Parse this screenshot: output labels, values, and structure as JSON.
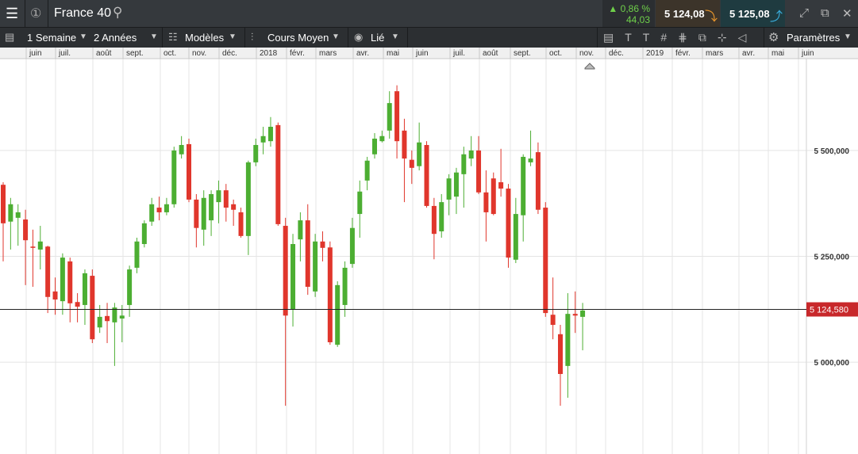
{
  "header": {
    "title": "France 40",
    "change_pct": "0,86 %",
    "change": "44,03",
    "sell": "5 124,08",
    "buy": "5 125,08"
  },
  "toolbar": {
    "period": "1 Semaine",
    "range": "2 Années",
    "templates": "Modèles",
    "price_type": "Cours Moyen",
    "link": "Lié",
    "settings": "Paramètres"
  },
  "chart": {
    "type": "candlestick",
    "grid": true,
    "up_color": "#4cae32",
    "down_color": "#e0362c",
    "months": [
      "juin",
      "juil.",
      "août",
      "sept.",
      "oct.",
      "nov.",
      "déc.",
      "2018",
      "févr.",
      "mars",
      "avr.",
      "mai",
      "juin",
      "juil.",
      "août",
      "sept.",
      "oct.",
      "nov.",
      "déc.",
      "2019",
      "févr.",
      "mars",
      "avr.",
      "mai",
      "juin"
    ],
    "ylim": [
      4783,
      5717
    ],
    "yticks": [
      {
        "value": 5000,
        "label": "5 000,000"
      },
      {
        "value": 5250,
        "label": "5 250,000"
      },
      {
        "value": 5500,
        "label": "5 500,000"
      }
    ],
    "last": {
      "value": 5124.58,
      "label": "5 124,580"
    },
    "open": [
      5419,
      5332,
      5341,
      5337,
      5273,
      5266,
      5273,
      5167,
      5144,
      5238,
      5142,
      5135,
      5204,
      5082,
      5109,
      5094,
      5103,
      5135,
      5223,
      5279,
      5332,
      5365,
      5354,
      5373,
      5491,
      5515,
      5384,
      5313,
      5335,
      5378,
      5406,
      5373,
      5354,
      5298,
      5472,
      5519,
      5522,
      5560,
      5322,
      5125,
      5290,
      5335,
      5167,
      5285,
      5271,
      5041,
      5135,
      5232,
      5350,
      5429,
      5491,
      5522,
      5547,
      5640,
      5547,
      5478,
      5463,
      5513,
      5369,
      5309,
      5384,
      5391,
      5444,
      5481,
      5500,
      5401,
      5434,
      5425,
      5410,
      5242,
      5347,
      5472,
      5496,
      5365,
      5112,
      5066,
      4991,
      5114,
      5107
    ],
    "high": [
      5425,
      5388,
      5373,
      5360,
      5313,
      5322,
      5275,
      5200,
      5257,
      5247,
      5163,
      5219,
      5219,
      5135,
      5140,
      5140,
      5135,
      5228,
      5294,
      5335,
      5388,
      5391,
      5388,
      5509,
      5534,
      5528,
      5397,
      5406,
      5406,
      5429,
      5421,
      5384,
      5365,
      5476,
      5528,
      5556,
      5579,
      5566,
      5341,
      5303,
      5354,
      5373,
      5303,
      5309,
      5285,
      5191,
      5238,
      5341,
      5429,
      5485,
      5541,
      5547,
      5640,
      5654,
      5575,
      5500,
      5566,
      5522,
      5388,
      5397,
      5444,
      5459,
      5509,
      5534,
      5534,
      5453,
      5448,
      5504,
      5421,
      5388,
      5491,
      5547,
      5519,
      5378,
      5200,
      5088,
      5163,
      5167,
      5140
    ],
    "low": [
      5238,
      5266,
      5275,
      5182,
      5178,
      5219,
      5116,
      5112,
      5112,
      5094,
      5094,
      5088,
      5045,
      5069,
      5045,
      4991,
      5047,
      5107,
      5210,
      5271,
      5322,
      5335,
      5347,
      5365,
      5481,
      5378,
      5271,
      5275,
      5298,
      5328,
      5332,
      5322,
      5294,
      5253,
      5463,
      5491,
      5509,
      5322,
      4897,
      5084,
      5238,
      5159,
      5154,
      5238,
      5041,
      5036,
      5107,
      5223,
      5294,
      5406,
      5481,
      5519,
      5528,
      5481,
      5378,
      5421,
      5453,
      5365,
      5243,
      5294,
      5347,
      5350,
      5365,
      5463,
      5397,
      5285,
      5347,
      5391,
      5223,
      5234,
      5285,
      5463,
      5350,
      5107,
      5054,
      4897,
      4916,
      5069,
      5028
    ],
    "close": [
      5328,
      5373,
      5354,
      5288,
      5270,
      5285,
      5154,
      5148,
      5247,
      5139,
      5131,
      5210,
      5054,
      5107,
      5097,
      5129,
      5110,
      5219,
      5285,
      5328,
      5373,
      5354,
      5373,
      5500,
      5513,
      5384,
      5317,
      5388,
      5397,
      5406,
      5365,
      5360,
      5298,
      5472,
      5513,
      5534,
      5556,
      5326,
      5110,
      5279,
      5335,
      5178,
      5285,
      5270,
      5047,
      5182,
      5223,
      5317,
      5403,
      5476,
      5528,
      5534,
      5612,
      5522,
      5481,
      5459,
      5519,
      5369,
      5303,
      5378,
      5434,
      5448,
      5491,
      5500,
      5401,
      5354,
      5350,
      5410,
      5247,
      5350,
      5485,
      5481,
      5360,
      5116,
      5088,
      4972,
      5114,
      5110,
      5122
    ]
  }
}
